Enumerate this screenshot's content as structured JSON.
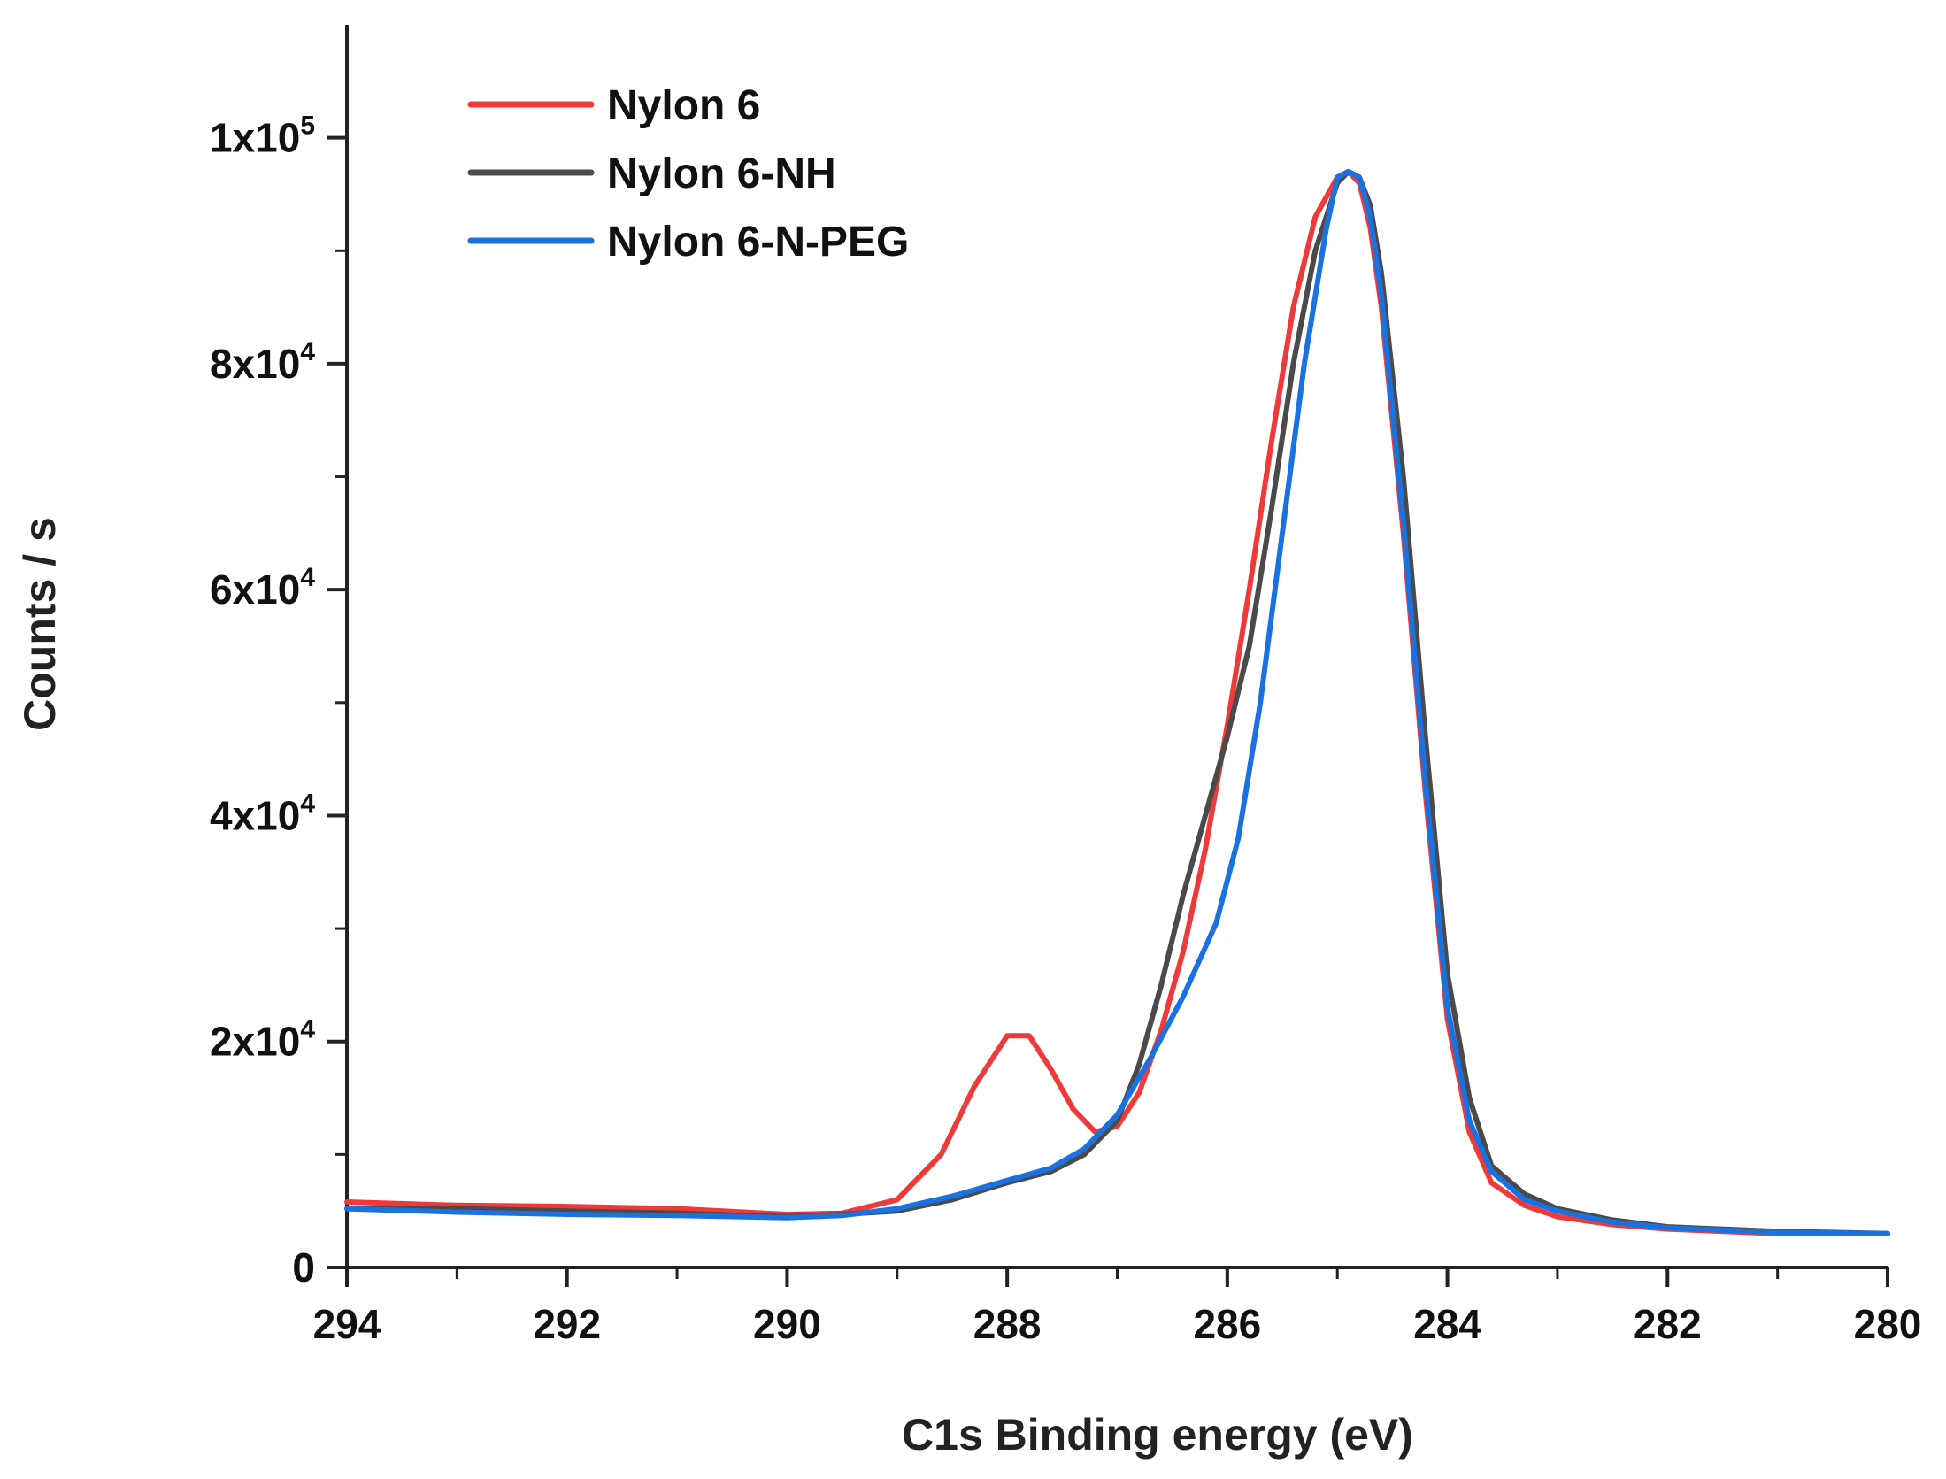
{
  "chart_data": {
    "type": "line",
    "title": "",
    "xlabel": "C1s Binding energy (eV)",
    "ylabel": "Counts / s",
    "xlim": [
      294,
      280
    ],
    "ylim": [
      0,
      110000
    ],
    "x_ticks": [
      294,
      292,
      290,
      288,
      286,
      284,
      282,
      280
    ],
    "x_tick_labels": [
      "294",
      "292",
      "290",
      "288",
      "286",
      "284",
      "282",
      "280"
    ],
    "y_ticks": [
      0,
      20000,
      40000,
      60000,
      80000,
      100000
    ],
    "y_tick_labels": [
      {
        "base": "0",
        "exp": ""
      },
      {
        "base": "2x10",
        "exp": "4"
      },
      {
        "base": "4x10",
        "exp": "4"
      },
      {
        "base": "6x10",
        "exp": "4"
      },
      {
        "base": "8x10",
        "exp": "4"
      },
      {
        "base": "1x10",
        "exp": "5"
      }
    ],
    "legend_position": "top-left",
    "series": [
      {
        "name": "Nylon 6",
        "color": "#f03a3a",
        "x": [
          294,
          293,
          292,
          291,
          290,
          289.5,
          289,
          288.6,
          288.3,
          288.0,
          287.8,
          287.6,
          287.4,
          287.2,
          287.0,
          286.8,
          286.6,
          286.4,
          286.2,
          286.0,
          285.8,
          285.6,
          285.4,
          285.2,
          285.0,
          284.9,
          284.8,
          284.7,
          284.6,
          284.4,
          284.2,
          284.0,
          283.8,
          283.6,
          283.3,
          283.0,
          282.5,
          282,
          281,
          280
        ],
        "y": [
          5800,
          5500,
          5400,
          5200,
          4700,
          4800,
          6000,
          10000,
          16000,
          20500,
          20500,
          17500,
          14000,
          12000,
          12500,
          15500,
          21000,
          28000,
          37000,
          48000,
          60000,
          73000,
          85000,
          93000,
          96500,
          97000,
          96000,
          92000,
          85000,
          65000,
          42000,
          22000,
          12000,
          7500,
          5500,
          4500,
          3800,
          3400,
          3000,
          3000
        ]
      },
      {
        "name": "Nylon 6-NH",
        "color": "#4a4a4a",
        "x": [
          294,
          293,
          292,
          291,
          290,
          289.5,
          289,
          288.5,
          288,
          287.6,
          287.3,
          287.0,
          286.8,
          286.6,
          286.4,
          286.2,
          286.0,
          285.8,
          285.6,
          285.4,
          285.2,
          285.0,
          284.9,
          284.8,
          284.7,
          284.6,
          284.4,
          284.2,
          284.0,
          283.8,
          283.6,
          283.3,
          283.0,
          282.5,
          282,
          281,
          280
        ],
        "y": [
          5200,
          5200,
          5000,
          4800,
          4500,
          4700,
          5000,
          6000,
          7500,
          8500,
          10000,
          13000,
          18000,
          25000,
          33000,
          40000,
          47000,
          55000,
          67000,
          80000,
          90000,
          96000,
          97000,
          96500,
          94000,
          88000,
          70000,
          47000,
          26000,
          15000,
          9000,
          6500,
          5200,
          4200,
          3600,
          3200,
          3000
        ]
      },
      {
        "name": "Nylon 6-N-PEG",
        "color": "#1a72e0",
        "x": [
          294,
          293,
          292,
          291,
          290,
          289.5,
          289,
          288.5,
          288,
          287.6,
          287.3,
          287.0,
          286.7,
          286.4,
          286.1,
          285.9,
          285.7,
          285.5,
          285.3,
          285.1,
          285.0,
          284.9,
          284.8,
          284.7,
          284.6,
          284.4,
          284.2,
          284.0,
          283.8,
          283.6,
          283.3,
          283.0,
          282.5,
          282,
          281,
          280
        ],
        "y": [
          5200,
          4900,
          4700,
          4600,
          4400,
          4600,
          5200,
          6300,
          7700,
          8800,
          10500,
          13500,
          18500,
          24000,
          30500,
          38000,
          50000,
          65000,
          80000,
          92000,
          96500,
          97000,
          96500,
          93000,
          86000,
          66000,
          43000,
          23000,
          13000,
          8500,
          6000,
          5000,
          4000,
          3500,
          3100,
          3000
        ]
      }
    ]
  }
}
